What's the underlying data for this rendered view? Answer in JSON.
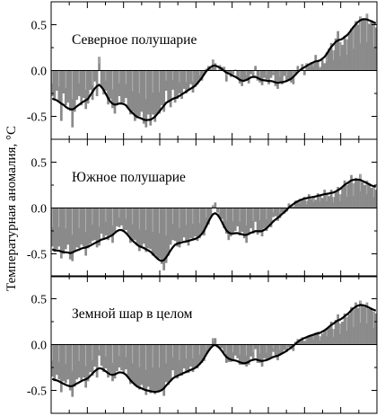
{
  "figure": {
    "ylabel": "Температурная аномалия, °C",
    "colors": {
      "bars": "#8a8a8a",
      "highlight": "#e8e8e8",
      "smooth": "#000000",
      "frame": "#000000"
    }
  },
  "chart_data": [
    {
      "type": "bar",
      "title": "Северное полушарие",
      "xlabel": "",
      "ylabel": "Температурная аномалия, °C",
      "ylim": [
        -0.75,
        0.75
      ],
      "yticks": [
        "0.5",
        "0.0",
        "-0.5"
      ],
      "x_range": [
        0,
        146
      ],
      "series": [
        {
          "name": "",
          "values": [
            -0.28,
            -0.32,
            -0.22,
            -0.35,
            -0.55,
            -0.25,
            -0.38,
            -0.35,
            -0.44,
            -0.62,
            -0.45,
            -0.32,
            -0.28,
            -0.38,
            -0.3,
            -0.42,
            -0.36,
            -0.21,
            -0.32,
            -0.12,
            -0.28,
            0.15,
            -0.18,
            -0.26,
            -0.22,
            -0.37,
            -0.31,
            -0.41,
            -0.47,
            -0.38,
            -0.28,
            -0.36,
            -0.35,
            -0.3,
            -0.42,
            -0.48,
            -0.45,
            -0.55,
            -0.52,
            -0.5,
            -0.45,
            -0.58,
            -0.62,
            -0.48,
            -0.6,
            -0.48,
            -0.56,
            -0.48,
            -0.47,
            -0.38,
            -0.45,
            -0.22,
            -0.35,
            -0.4,
            -0.21,
            -0.35,
            -0.31,
            -0.25,
            -0.31,
            -0.2,
            -0.25,
            -0.21,
            -0.15,
            -0.24,
            -0.18,
            -0.15,
            -0.1,
            -0.11,
            -0.05,
            0.02,
            0.05,
            0.02,
            0.12,
            0.08,
            0.0,
            0.06,
            0.04,
            0.04,
            -0.12,
            -0.02,
            -0.07,
            -0.04,
            0.01,
            -0.09,
            -0.14,
            -0.17,
            -0.11,
            -0.1,
            -0.14,
            -0.04,
            -0.06,
            0.05,
            -0.11,
            -0.13,
            -0.16,
            -0.08,
            -0.1,
            -0.15,
            -0.08,
            -0.05,
            -0.17,
            -0.2,
            -0.13,
            -0.15,
            -0.06,
            -0.12,
            -0.1,
            -0.13,
            -0.15,
            -0.03,
            0.05,
            0.01,
            0.07,
            -0.05,
            0.08,
            0.05,
            0.09,
            0.08,
            0.17,
            0.11,
            0.04,
            0.12,
            0.08,
            0.2,
            0.24,
            0.3,
            0.22,
            0.35,
            0.43,
            0.31,
            0.28,
            0.38,
            0.34,
            0.4,
            0.46,
            0.48,
            0.54,
            0.5,
            0.59,
            0.57,
            0.56,
            0.62,
            0.51,
            0.55,
            0.52,
            0.47
          ]
        }
      ]
    },
    {
      "type": "bar",
      "title": "Южное полушарие",
      "xlabel": "",
      "ylabel": "Температурная аномалия, °C",
      "ylim": [
        -0.75,
        0.75
      ],
      "yticks": [
        "0.5",
        "0.0",
        "-0.5"
      ],
      "x_range": [
        0,
        146
      ],
      "series": [
        {
          "name": "",
          "values": [
            -0.42,
            -0.48,
            -0.45,
            -0.42,
            -0.55,
            -0.5,
            -0.45,
            -0.4,
            -0.56,
            -0.58,
            -0.46,
            -0.43,
            -0.44,
            -0.4,
            -0.42,
            -0.52,
            -0.44,
            -0.39,
            -0.36,
            -0.35,
            -0.43,
            -0.41,
            -0.28,
            -0.33,
            -0.3,
            -0.35,
            -0.31,
            -0.38,
            -0.26,
            -0.2,
            -0.21,
            -0.19,
            -0.26,
            -0.24,
            -0.29,
            -0.38,
            -0.36,
            -0.35,
            -0.41,
            -0.47,
            -0.43,
            -0.39,
            -0.48,
            -0.44,
            -0.45,
            -0.52,
            -0.51,
            -0.56,
            -0.55,
            -0.61,
            -0.68,
            -0.6,
            -0.52,
            -0.4,
            -0.35,
            -0.36,
            -0.42,
            -0.43,
            -0.36,
            -0.32,
            -0.37,
            -0.41,
            -0.33,
            -0.35,
            -0.31,
            -0.36,
            -0.33,
            -0.29,
            -0.3,
            -0.21,
            -0.18,
            -0.09,
            0.03,
            0.06,
            -0.05,
            -0.11,
            -0.12,
            -0.22,
            -0.28,
            -0.35,
            -0.31,
            -0.29,
            -0.25,
            -0.2,
            -0.3,
            -0.26,
            -0.33,
            -0.38,
            -0.29,
            -0.22,
            -0.28,
            -0.15,
            -0.29,
            -0.27,
            -0.31,
            -0.22,
            -0.25,
            -0.19,
            -0.21,
            -0.1,
            -0.09,
            -0.14,
            -0.11,
            -0.05,
            -0.06,
            -0.04,
            0.05,
            0.03,
            0.02,
            0.08,
            0.07,
            0.1,
            0.09,
            0.12,
            0.08,
            0.15,
            0.1,
            0.13,
            0.09,
            0.16,
            0.14,
            0.11,
            0.2,
            0.15,
            0.13,
            0.2,
            0.12,
            0.18,
            0.23,
            0.15,
            0.22,
            0.3,
            0.25,
            0.28,
            0.36,
            0.27,
            0.33,
            0.3,
            0.37,
            0.28,
            0.25,
            0.3,
            0.27,
            0.22,
            0.24,
            0.2
          ]
        }
      ]
    },
    {
      "type": "bar",
      "title": "Земной шар в целом",
      "xlabel": "",
      "ylabel": "Температурная аномалия, °C",
      "ylim": [
        -0.75,
        0.75
      ],
      "yticks": [
        "0.5",
        "0.0",
        "-0.5"
      ],
      "x_range": [
        0,
        146
      ],
      "series": [
        {
          "name": "",
          "values": [
            -0.35,
            -0.4,
            -0.33,
            -0.38,
            -0.52,
            -0.4,
            -0.42,
            -0.38,
            -0.5,
            -0.57,
            -0.46,
            -0.38,
            -0.36,
            -0.39,
            -0.36,
            -0.47,
            -0.4,
            -0.3,
            -0.34,
            -0.24,
            -0.36,
            -0.12,
            -0.23,
            -0.3,
            -0.26,
            -0.36,
            -0.31,
            -0.4,
            -0.37,
            -0.29,
            -0.25,
            -0.28,
            -0.31,
            -0.27,
            -0.36,
            -0.43,
            -0.41,
            -0.45,
            -0.47,
            -0.49,
            -0.44,
            -0.49,
            -0.55,
            -0.46,
            -0.53,
            -0.5,
            -0.54,
            -0.52,
            -0.51,
            -0.5,
            -0.56,
            -0.41,
            -0.44,
            -0.4,
            -0.28,
            -0.36,
            -0.37,
            -0.34,
            -0.34,
            -0.26,
            -0.31,
            -0.31,
            -0.24,
            -0.3,
            -0.25,
            -0.26,
            -0.22,
            -0.2,
            -0.18,
            -0.1,
            -0.07,
            -0.04,
            0.07,
            0.07,
            -0.03,
            -0.03,
            -0.04,
            -0.09,
            -0.2,
            -0.19,
            -0.19,
            -0.17,
            -0.12,
            -0.15,
            -0.22,
            -0.22,
            -0.22,
            -0.24,
            -0.22,
            -0.13,
            -0.17,
            -0.05,
            -0.2,
            -0.2,
            -0.24,
            -0.15,
            -0.18,
            -0.17,
            -0.15,
            -0.08,
            -0.13,
            -0.17,
            -0.12,
            -0.1,
            -0.06,
            -0.08,
            -0.03,
            -0.05,
            -0.07,
            0.03,
            0.06,
            0.06,
            0.08,
            0.04,
            0.08,
            0.1,
            0.1,
            0.11,
            0.13,
            0.14,
            0.09,
            0.12,
            0.15,
            0.18,
            0.19,
            0.25,
            0.17,
            0.27,
            0.33,
            0.23,
            0.25,
            0.34,
            0.3,
            0.33,
            0.41,
            0.38,
            0.46,
            0.4,
            0.48,
            0.43,
            0.41,
            0.46,
            0.39,
            0.39,
            0.36,
            0.34
          ]
        }
      ]
    }
  ]
}
